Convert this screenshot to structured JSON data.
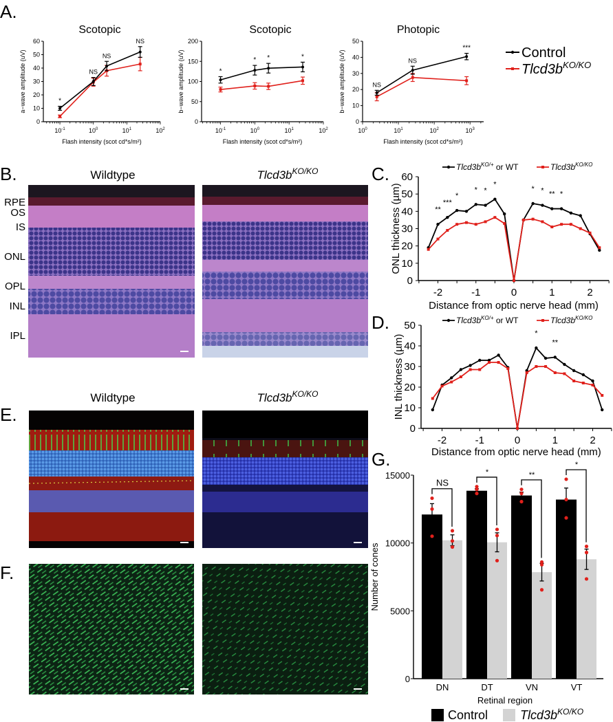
{
  "panel_labels": {
    "A": "A.",
    "B": "B.",
    "C": "C.",
    "D": "D.",
    "E": "E.",
    "F": "F.",
    "G": "G."
  },
  "colors": {
    "control": "#000000",
    "ko": "#e0201b",
    "ko_bar": "#d3d3d3"
  },
  "legend_a": {
    "control": "Control",
    "ko": "Tlcd3b",
    "ko_sup": "KO/KO"
  },
  "panel_b": {
    "wt_title": "Wildtype",
    "ko_title": "Tlcd3b",
    "ko_sup": "KO/KO",
    "layers": [
      "RPE",
      "OS",
      "IS",
      "ONL",
      "OPL",
      "INL",
      "IPL"
    ]
  },
  "panel_e": {
    "wt_title": "Wildtype",
    "ko_title": "Tlcd3b",
    "ko_sup": "KO/KO"
  },
  "chart_data": [
    {
      "type": "line",
      "title": "Scotopic",
      "xlabel": "Flash intensity (scot cd*s/m²)",
      "ylabel": "a−wave amplitude (uV)",
      "xscale": "log",
      "xlim": [
        0.032,
        100
      ],
      "ylim": [
        0,
        60
      ],
      "yticks": [
        0,
        10,
        20,
        30,
        40,
        50,
        60
      ],
      "xticks": [
        {
          "base": "10",
          "exp": "-1",
          "v": 0.1
        },
        {
          "base": "10",
          "exp": "0",
          "v": 1
        },
        {
          "base": "10",
          "exp": "1",
          "v": 10
        },
        {
          "base": "10",
          "exp": "2",
          "v": 100
        }
      ],
      "x": [
        0.1,
        1,
        2.5,
        25
      ],
      "series": [
        {
          "name": "Control",
          "y": [
            10,
            30,
            41.5,
            52
          ],
          "err": [
            1.5,
            3,
            3.5,
            4
          ]
        },
        {
          "name": "Tlcd3b KO/KO",
          "y": [
            4,
            29.5,
            38,
            43
          ],
          "err": [
            1,
            3,
            4,
            5
          ]
        }
      ],
      "significance": [
        "*",
        "NS",
        "NS",
        "NS"
      ]
    },
    {
      "type": "line",
      "title": "Scotopic",
      "xlabel": "Flash intensity (scot cd*s/m²)",
      "ylabel": "b−wave amplitude (uV)",
      "xscale": "log",
      "xlim": [
        0.028,
        100
      ],
      "ylim": [
        0,
        200
      ],
      "yticks": [
        0,
        50,
        100,
        150,
        200
      ],
      "xticks": [
        {
          "base": "10",
          "exp": "-1",
          "v": 0.1
        },
        {
          "base": "10",
          "exp": "0",
          "v": 1
        },
        {
          "base": "10",
          "exp": "1",
          "v": 10
        },
        {
          "base": "10",
          "exp": "2",
          "v": 100
        }
      ],
      "x": [
        0.1,
        1,
        2.5,
        25
      ],
      "series": [
        {
          "name": "Control",
          "y": [
            104,
            128,
            133,
            136
          ],
          "err": [
            8,
            12,
            12,
            12
          ]
        },
        {
          "name": "Tlcd3b KO/KO",
          "y": [
            80,
            89,
            88,
            102
          ],
          "err": [
            6,
            8,
            8,
            9
          ]
        }
      ],
      "significance": [
        "*",
        "*",
        "*",
        "*"
      ]
    },
    {
      "type": "line",
      "title": "Photopic",
      "xlabel": "Flash intensity (scot cd*s/m²)",
      "ylabel": "b−wave amplitude (uV)",
      "xscale": "log",
      "xlim": [
        1,
        2400
      ],
      "ylim": [
        0,
        50
      ],
      "yticks": [
        0,
        10,
        20,
        30,
        40,
        50
      ],
      "xticks": [
        {
          "base": "10",
          "exp": "0",
          "v": 1
        },
        {
          "base": "10",
          "exp": "1",
          "v": 10
        },
        {
          "base": "10",
          "exp": "2",
          "v": 100
        },
        {
          "base": "10",
          "exp": "3",
          "v": 1000
        }
      ],
      "x": [
        2.5,
        25,
        800
      ],
      "series": [
        {
          "name": "Control",
          "y": [
            18,
            32,
            40.5
          ],
          "err": [
            1.5,
            2.5,
            2
          ]
        },
        {
          "name": "Tlcd3b KO/KO",
          "y": [
            15.5,
            27.5,
            25.5
          ],
          "err": [
            2.5,
            2.5,
            2.5
          ]
        }
      ],
      "significance": [
        "NS",
        "NS",
        "***"
      ]
    },
    {
      "type": "line",
      "xlabel": "Distance from optic nerve head (mm)",
      "ylabel": "ONL thickness (µm)",
      "xlim": [
        -2.5,
        2.5
      ],
      "ylim": [
        0,
        60
      ],
      "yticks": [
        0,
        10,
        20,
        30,
        40,
        50,
        60
      ],
      "xticks": [
        -2,
        -1,
        0,
        1,
        2
      ],
      "legend": {
        "wt": "Tlcd3b",
        "wt_sup": "KO/+",
        "wt_suffix": " or WT",
        "ko": "Tlcd3b",
        "ko_sup": "KO/KO"
      },
      "x": [
        -2.25,
        -2,
        -1.75,
        -1.5,
        -1.25,
        -1,
        -0.75,
        -0.5,
        -0.25,
        0,
        0.25,
        0.5,
        0.75,
        1,
        1.25,
        1.5,
        1.75,
        2,
        2.25
      ],
      "series": [
        {
          "name": "Tlcd3b KO/+ or WT",
          "y": [
            19,
            32.5,
            36.5,
            40.5,
            40,
            44,
            43.5,
            47,
            38.5,
            0,
            35,
            44.5,
            43.5,
            41.5,
            41.5,
            39,
            37.5,
            27,
            17.5
          ]
        },
        {
          "name": "Tlcd3b KO/KO",
          "y": [
            18,
            24,
            29,
            32.5,
            33.5,
            32.5,
            34,
            36.5,
            33,
            0,
            35,
            35.5,
            34,
            31,
            32.5,
            32.5,
            30,
            27.5,
            19
          ]
        }
      ],
      "significance": [
        "",
        "**",
        "***",
        "*",
        "",
        "*",
        "*",
        "*",
        "",
        "",
        "",
        "*",
        "*",
        "**",
        "*",
        "",
        "",
        "",
        ""
      ]
    },
    {
      "type": "line",
      "xlabel": "Distance from optic nerve head (mm)",
      "ylabel": "INL thickness (µm)",
      "xlim": [
        -2.5,
        2.5
      ],
      "ylim": [
        0,
        50
      ],
      "yticks": [
        0,
        10,
        20,
        30,
        40,
        50
      ],
      "xticks": [
        -2,
        -1,
        0,
        1,
        2
      ],
      "legend": {
        "wt": "Tlcd3b",
        "wt_sup": "KO/+",
        "wt_suffix": " or WT",
        "ko": "Tlcd3b",
        "ko_sup": "KO/KO"
      },
      "x": [
        -2.25,
        -2,
        -1.75,
        -1.5,
        -1.25,
        -1,
        -0.75,
        -0.5,
        -0.25,
        0,
        0.25,
        0.5,
        0.75,
        1,
        1.25,
        1.5,
        1.75,
        2,
        2.25
      ],
      "series": [
        {
          "name": "Tlcd3b KO/+ or WT",
          "y": [
            9,
            21,
            24.5,
            28.5,
            30.5,
            33,
            33,
            35.5,
            29.5,
            0,
            28,
            39,
            34,
            34.5,
            31,
            28,
            26,
            23,
            9
          ]
        },
        {
          "name": "Tlcd3b KO/KO",
          "y": [
            14.5,
            20.5,
            22.5,
            25,
            28.5,
            28.5,
            32,
            32,
            29,
            0,
            27,
            30,
            30,
            27,
            26.5,
            23,
            22,
            21,
            16
          ]
        }
      ],
      "significance": [
        "",
        "",
        "",
        "",
        "",
        "",
        "",
        "",
        "",
        "",
        "",
        "*",
        "",
        "**",
        "",
        "",
        "",
        "",
        ""
      ]
    },
    {
      "type": "bar",
      "xlabel": "Retinal region",
      "ylabel": "Number of cones",
      "ylim": [
        0,
        15000
      ],
      "yticks": [
        0,
        5000,
        10000,
        15000
      ],
      "categories": [
        "DN",
        "DT",
        "VN",
        "VT"
      ],
      "legend": {
        "control": "Control",
        "ko": "Tlcd3b",
        "ko_sup": "KO/KO"
      },
      "series": [
        {
          "name": "Control",
          "values": [
            12100,
            13850,
            13500,
            13200
          ],
          "err": [
            800,
            150,
            250,
            850
          ],
          "points": [
            [
              13300,
              12500,
              10500
            ],
            [
              14150,
              13950,
              13650
            ],
            [
              13950,
              13650,
              13050
            ],
            [
              14700,
              13200,
              11850
            ]
          ]
        },
        {
          "name": "Tlcd3b KO/KO",
          "values": [
            10200,
            10050,
            7850,
            8800
          ],
          "err": [
            400,
            700,
            650,
            750
          ],
          "points": [
            [
              10900,
              10150,
              9700
            ],
            [
              11000,
              10550,
              8700
            ],
            [
              8600,
              8400,
              6550
            ],
            [
              9750,
              9300,
              7350
            ]
          ]
        }
      ],
      "significance": [
        "NS",
        "*",
        "**",
        "*"
      ]
    }
  ]
}
